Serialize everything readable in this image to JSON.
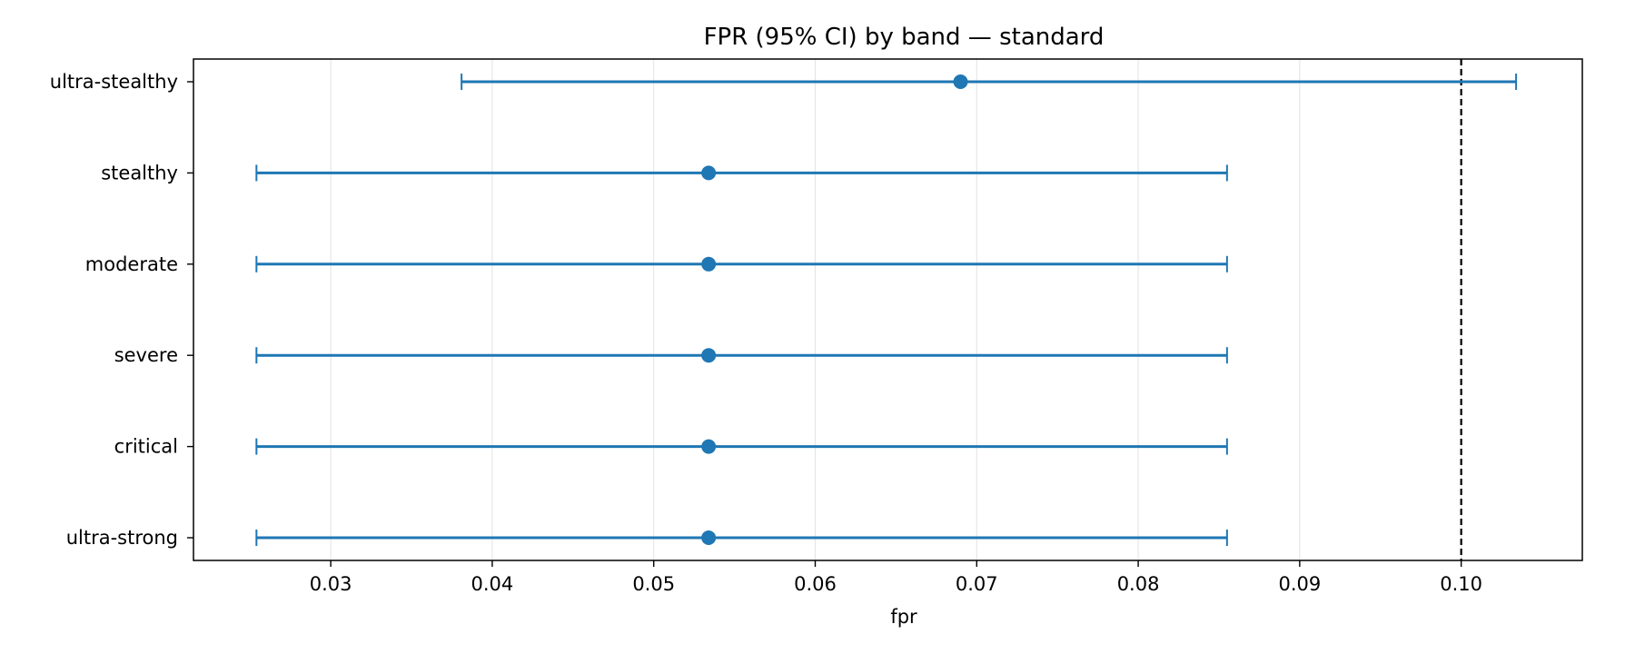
{
  "chart_data": {
    "type": "errorbar",
    "title": "FPR (95% CI) by band — standard",
    "xlabel": "fpr",
    "ylabel": "",
    "xlim": [
      0.0215,
      0.1075
    ],
    "x_ticks": [
      0.03,
      0.04,
      0.05,
      0.06,
      0.07,
      0.08,
      0.09,
      0.1
    ],
    "x_tick_labels": [
      "0.03",
      "0.04",
      "0.05",
      "0.06",
      "0.07",
      "0.08",
      "0.09",
      "0.10"
    ],
    "categories": [
      "ultra-stealthy",
      "stealthy",
      "moderate",
      "severe",
      "critical",
      "ultra-strong"
    ],
    "points": [
      {
        "band": "ultra-stealthy",
        "fpr": 0.069,
        "ci_low": 0.0381,
        "ci_high": 0.1034
      },
      {
        "band": "stealthy",
        "fpr": 0.0534,
        "ci_low": 0.0254,
        "ci_high": 0.0855
      },
      {
        "band": "moderate",
        "fpr": 0.0534,
        "ci_low": 0.0254,
        "ci_high": 0.0855
      },
      {
        "band": "severe",
        "fpr": 0.0534,
        "ci_low": 0.0254,
        "ci_high": 0.0855
      },
      {
        "band": "critical",
        "fpr": 0.0534,
        "ci_low": 0.0254,
        "ci_high": 0.0855
      },
      {
        "band": "ultra-strong",
        "fpr": 0.0534,
        "ci_low": 0.0254,
        "ci_high": 0.0855
      }
    ],
    "reference_line": {
      "x": 0.1,
      "style": "dashed",
      "color": "#000000"
    },
    "grid": {
      "x": true,
      "y": false
    },
    "colors": {
      "series": "#1f77b4"
    }
  }
}
